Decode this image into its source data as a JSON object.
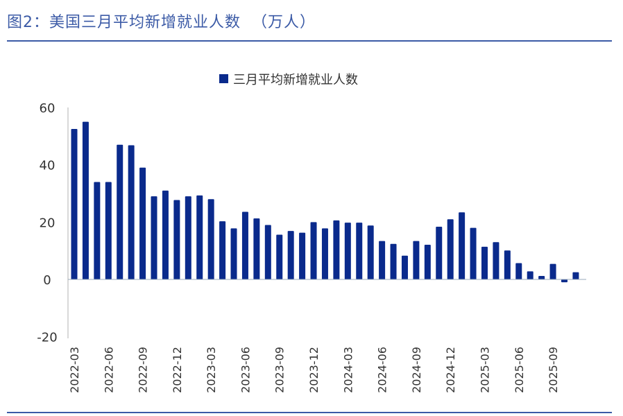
{
  "title": "图2：美国三月平均新增就业人数  （万人）",
  "chart_data": {
    "type": "bar",
    "title": "",
    "xlabel": "",
    "ylabel": "",
    "ylim": [
      -20,
      60
    ],
    "yticks": [
      60,
      40,
      20,
      0,
      -20
    ],
    "negative_tick_color": "#cc0000",
    "legend": {
      "position": "top",
      "entries": [
        "三月平均新增就业人数"
      ]
    },
    "grid": false,
    "bar_color": "#0a2a8c",
    "series": [
      {
        "name": "三月平均新增就业人数",
        "values": [
          52.5,
          55,
          34,
          34,
          47,
          46.8,
          39,
          29,
          31,
          27.7,
          29,
          29.3,
          28,
          20.3,
          17.8,
          23.6,
          21.3,
          19,
          15.6,
          16.9,
          16.3,
          20,
          17.8,
          20.6,
          19.8,
          19.8,
          18.8,
          13.4,
          12.4,
          8.3,
          13.4,
          12.1,
          18.4,
          21,
          23.4,
          18,
          11.4,
          13,
          10.1,
          5.7,
          2.8,
          1.2,
          5.4,
          -1,
          2.5
        ]
      }
    ],
    "categories": [
      "2022-03",
      "2022-04",
      "2022-05",
      "2022-06",
      "2022-07",
      "2022-08",
      "2022-09",
      "2022-10",
      "2022-11",
      "2022-12",
      "2023-01",
      "2023-02",
      "2023-03",
      "2023-04",
      "2023-05",
      "2023-06",
      "2023-07",
      "2023-08",
      "2023-09",
      "2023-10",
      "2023-11",
      "2023-12",
      "2024-01",
      "2024-02",
      "2024-03",
      "2024-04",
      "2024-05",
      "2024-06",
      "2024-07",
      "2024-08",
      "2024-09",
      "2024-10",
      "2024-11",
      "2024-12",
      "2025-01",
      "2025-02",
      "2025-03",
      "2025-04",
      "2025-05",
      "2025-06",
      "2025-07",
      "2025-08",
      "2025-09",
      "2025-10",
      "2025-11"
    ],
    "xtick_labels": [
      "2022-03",
      "2022-06",
      "2022-09",
      "2022-12",
      "2023-03",
      "2023-06",
      "2023-09",
      "2023-12",
      "2024-03",
      "2024-06",
      "2024-09",
      "2024-12",
      "2025-03",
      "2025-06",
      "2025-09"
    ]
  }
}
